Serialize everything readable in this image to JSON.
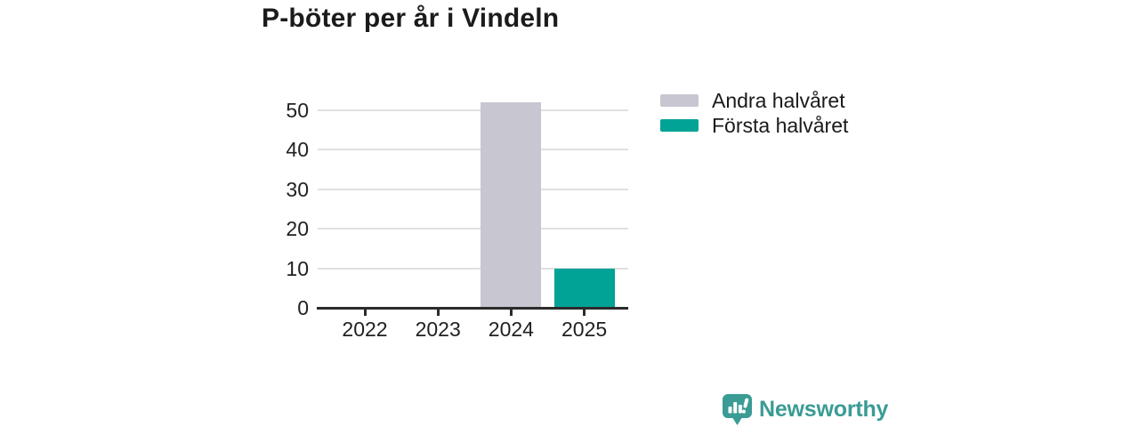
{
  "chart_data": {
    "type": "bar",
    "stacked": true,
    "title": "P-böter per år i Vindeln",
    "categories": [
      "2022",
      "2023",
      "2024",
      "2025"
    ],
    "series": [
      {
        "name": "Andra halvåret",
        "color": "#c8c6d0",
        "values": [
          0,
          0,
          52,
          0
        ]
      },
      {
        "name": "Första halvåret",
        "color": "#00a396",
        "values": [
          0,
          0,
          0,
          10
        ]
      }
    ],
    "yticks": [
      0,
      10,
      20,
      30,
      40,
      50
    ],
    "ylim": [
      0,
      52
    ],
    "xlabel": "",
    "ylabel": "",
    "grid": "horizontal",
    "legend_position": "right"
  },
  "colors": {
    "accent_teal": "#00a396",
    "muted_gray": "#c8c6d0",
    "brand_teal": "#3a9c94",
    "gridline": "#e0e0e0",
    "axis": "#2b2b2b"
  },
  "footer": {
    "brand": "Newsworthy"
  }
}
